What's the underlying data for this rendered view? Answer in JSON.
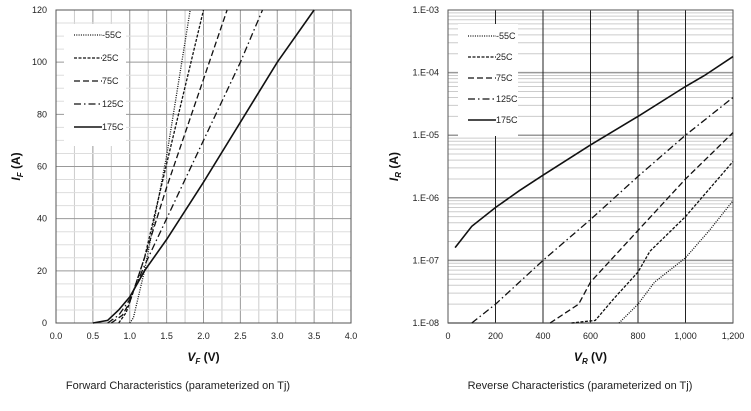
{
  "chart_data": [
    {
      "type": "line",
      "caption": "Forward Characteristics (parameterized on Tj)",
      "xlabel": "V_F (V)",
      "ylabel": "I_F (A)",
      "xlabel_main": "V",
      "xlabel_sub": "F",
      "xlabel_unit": "(V)",
      "ylabel_main": "I",
      "ylabel_sub": "F",
      "ylabel_unit": "(A)",
      "xlim": [
        0,
        4.0
      ],
      "ylim": [
        0,
        120
      ],
      "yscale": "linear",
      "grid": true,
      "legend": "top-left",
      "xticks": [
        "0.0",
        "0.5",
        "1.0",
        "1.5",
        "2.0",
        "2.5",
        "3.0",
        "3.5",
        "4.0"
      ],
      "yticks": [
        "0",
        "20",
        "40",
        "60",
        "80",
        "100",
        "120"
      ],
      "series": [
        {
          "name": "-55C",
          "style": "dotted",
          "points": [
            [
              1.0,
              0
            ],
            [
              1.05,
              2
            ],
            [
              1.1,
              8
            ],
            [
              1.2,
              20
            ],
            [
              1.5,
              64
            ],
            [
              1.82,
              120
            ]
          ]
        },
        {
          "name": "25C",
          "style": "short-dash",
          "points": [
            [
              0.85,
              0
            ],
            [
              0.95,
              4
            ],
            [
              1.0,
              8
            ],
            [
              1.2,
              25
            ],
            [
              1.5,
              61
            ],
            [
              2.0,
              120
            ]
          ]
        },
        {
          "name": "75C",
          "style": "long-dash",
          "points": [
            [
              0.75,
              0
            ],
            [
              0.9,
              3
            ],
            [
              1.0,
              8
            ],
            [
              1.2,
              25
            ],
            [
              1.5,
              52
            ],
            [
              2.32,
              120
            ]
          ]
        },
        {
          "name": "125C",
          "style": "dash-dot",
          "points": [
            [
              0.7,
              0
            ],
            [
              0.85,
              3
            ],
            [
              1.0,
              9
            ],
            [
              1.2,
              22
            ],
            [
              1.5,
              40
            ],
            [
              2.0,
              70
            ],
            [
              2.5,
              100
            ],
            [
              2.8,
              120
            ]
          ]
        },
        {
          "name": "175C",
          "style": "solid",
          "points": [
            [
              0.5,
              0
            ],
            [
              0.7,
              1
            ],
            [
              0.85,
              5
            ],
            [
              1.0,
              10
            ],
            [
              1.2,
              20
            ],
            [
              1.5,
              32
            ],
            [
              2.0,
              54
            ],
            [
              2.5,
              77
            ],
            [
              3.0,
              100
            ],
            [
              3.5,
              120
            ]
          ]
        }
      ]
    },
    {
      "type": "line",
      "caption": "Reverse Characteristics (parameterized on Tj)",
      "xlabel": "V_R (V)",
      "ylabel": "I_R (A)",
      "xlabel_main": "V",
      "xlabel_sub": "R",
      "xlabel_unit": "(V)",
      "ylabel_main": "I",
      "ylabel_sub": "R",
      "ylabel_unit": "(A)",
      "xlim": [
        0,
        1200
      ],
      "ylim": [
        1e-08,
        0.001
      ],
      "yscale": "log",
      "grid": true,
      "legend": "top-left",
      "xticks": [
        "0",
        "200",
        "400",
        "600",
        "800",
        "1,000",
        "1,200"
      ],
      "yticks": [
        "1.E-08",
        "1.E-07",
        "1.E-06",
        "1.E-05",
        "1.E-04",
        "1.E-03"
      ],
      "series": [
        {
          "name": "-55C",
          "style": "dotted",
          "points": [
            [
              720,
              1e-08
            ],
            [
              800,
              2e-08
            ],
            [
              870,
              4.5e-08
            ],
            [
              1000,
              1.1e-07
            ],
            [
              1100,
              3e-07
            ],
            [
              1200,
              9e-07
            ]
          ]
        },
        {
          "name": "25C",
          "style": "short-dash",
          "points": [
            [
              520,
              1e-08
            ],
            [
              620,
              1.1e-08
            ],
            [
              700,
              2.5e-08
            ],
            [
              800,
              6.5e-08
            ],
            [
              850,
              1.4e-07
            ],
            [
              1000,
              5e-07
            ],
            [
              1200,
              3.8e-06
            ]
          ]
        },
        {
          "name": "75C",
          "style": "long-dash",
          "points": [
            [
              430,
              1e-08
            ],
            [
              550,
              2e-08
            ],
            [
              600,
              4.5e-08
            ],
            [
              800,
              3e-07
            ],
            [
              1000,
              2e-06
            ],
            [
              1200,
              1.1e-05
            ]
          ]
        },
        {
          "name": "125C",
          "style": "dash-dot",
          "points": [
            [
              100,
              1e-08
            ],
            [
              200,
              2e-08
            ],
            [
              400,
              1e-07
            ],
            [
              600,
              4.5e-07
            ],
            [
              800,
              2.2e-06
            ],
            [
              1000,
              1e-05
            ],
            [
              1200,
              4e-05
            ]
          ]
        },
        {
          "name": "175C",
          "style": "solid",
          "points": [
            [
              30,
              1.6e-07
            ],
            [
              100,
              3.5e-07
            ],
            [
              200,
              7e-07
            ],
            [
              300,
              1.3e-06
            ],
            [
              400,
              2.3e-06
            ],
            [
              600,
              7e-06
            ],
            [
              800,
              2e-05
            ],
            [
              1000,
              6e-05
            ],
            [
              1080,
              9e-05
            ],
            [
              1200,
              0.00018
            ]
          ]
        }
      ]
    }
  ]
}
